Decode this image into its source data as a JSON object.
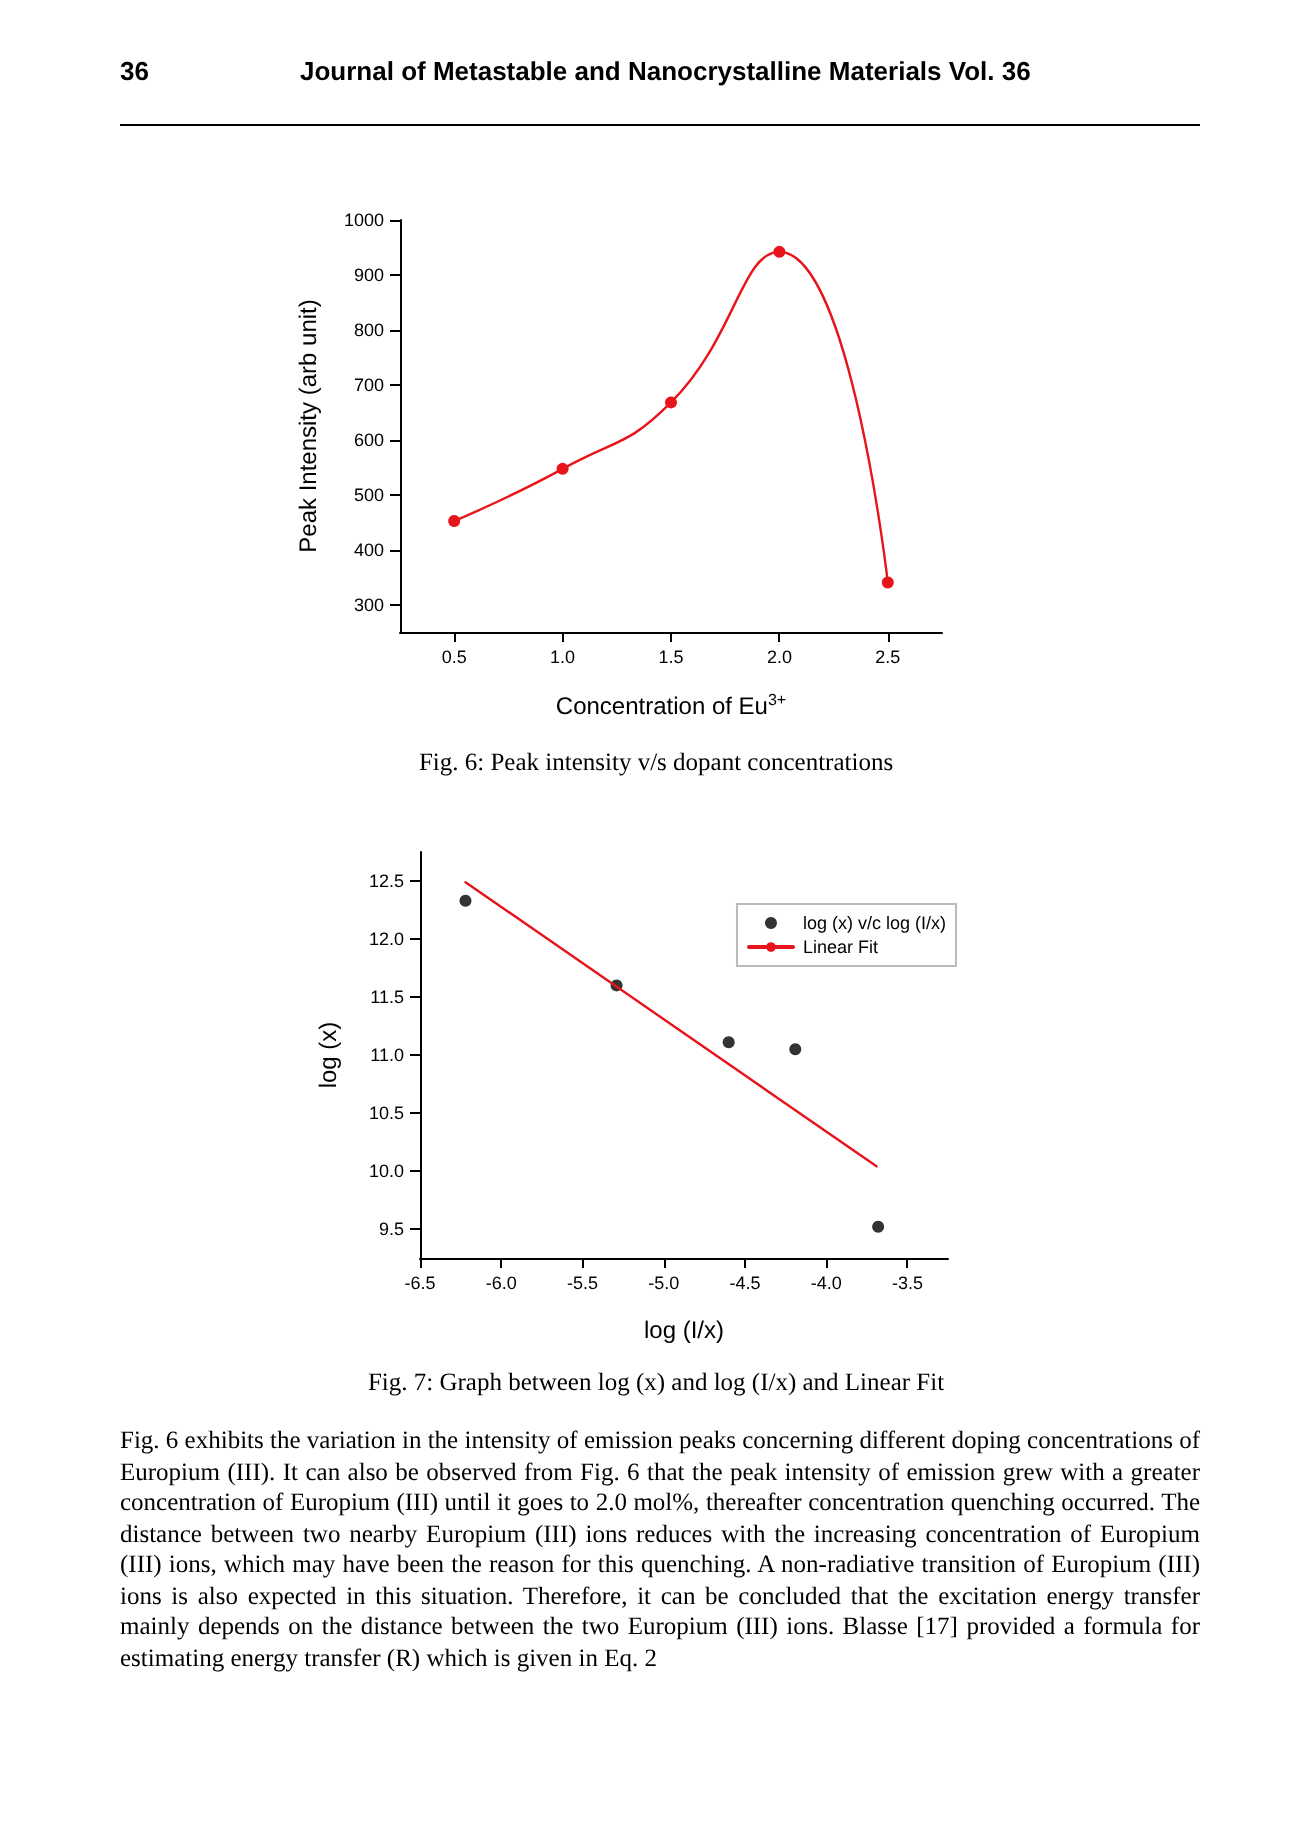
{
  "chart_data": [
    {
      "type": "line",
      "title": "Fig. 6: Peak intensity v/s dopant concentrations",
      "xlabel": "Concentration of Eu$^{3+}$",
      "ylabel": "Peak Intensity (arb unit)",
      "annotations": [
        "36",
        "Journal of Metastable and Nanocrystalline Materials Vol. 36"
      ],
      "x": [
        0.5,
        1.0,
        1.5,
        2.0,
        2.5
      ],
      "series": [
        {
          "color": "#e8141b",
          "values": [
            452,
            547,
            668,
            942,
            340
          ]
        }
      ],
      "xlim": [
        0.25,
        2.75
      ],
      "xticks": [
        0.5,
        {
          "value": 1,
          "label": "1.0"
        },
        1.5,
        {
          "value": 2,
          "label": "2.0"
        },
        2.5
      ],
      "ylim": [
        250,
        1000
      ],
      "yticks": [
        300,
        400,
        500,
        600,
        700,
        800,
        900,
        1000
      ],
      "marker": "circle",
      "line_style": "solid",
      "grid": false,
      "legend": false
    },
    {
      "type": "scatter",
      "title": "Fig. 7: Graph between log (x) and log (I/x) and Linear Fit",
      "xlabel": "log (I/x)",
      "ylabel": "log (x)",
      "annotations": [
        "Fig. 6 exhibits the variation in the intensity of emission peaks concerning different doping concentrations of Europium (III). It can also be observed from Fig. 6 that the peak intensity of emission grew with a greater concentration of Europium (III) until it goes to 2.0 mol%, thereafter concentration quenching occurred. The distance between two nearby Europium (III) ions reduces with the increasing concentration of Europium (III) ions, which may have been the reason for this quenching. A non-radiative transition of Europium (III) ions is also expected in this situation. Therefore, it can be concluded that the excitation energy transfer mainly depends on the distance between the two Europium (III) ions. Blasse [17] provided a formula for estimating energy transfer (R) which is given in Eq. 2"
      ],
      "series": [
        {
          "name": "log (x) v/c log (I/x)",
          "color": "#000000",
          "marker": "circle",
          "x": [
            -6.22,
            -5.29,
            -4.6,
            -4.19,
            -3.68
          ],
          "values": [
            12.33,
            11.6,
            11.11,
            11.05,
            9.52
          ]
        },
        {
          "name": "Linear Fit",
          "type": "line",
          "color": "#e8141b",
          "marker": "none",
          "x": [
            -6.22,
            -3.69
          ],
          "values": [
            12.49,
            10.04
          ]
        }
      ],
      "xlim": [
        -6.5,
        -3.25
      ],
      "xticks": [
        -6.5,
        {
          "value": -6,
          "label": "-6.0"
        },
        -5.5,
        {
          "value": -5,
          "label": "-5.0"
        },
        -4.5,
        {
          "value": -4,
          "label": "-4.0"
        },
        -3.5
      ],
      "ylim": [
        9.25,
        12.75
      ],
      "yticks": [
        9.5,
        {
          "value": 10,
          "label": "10.0"
        },
        10.5,
        {
          "value": 11,
          "label": "11.0"
        },
        11.5,
        {
          "value": 12,
          "label": "12.0"
        },
        12.5
      ],
      "grid": false,
      "legend": "top right"
    }
  ]
}
